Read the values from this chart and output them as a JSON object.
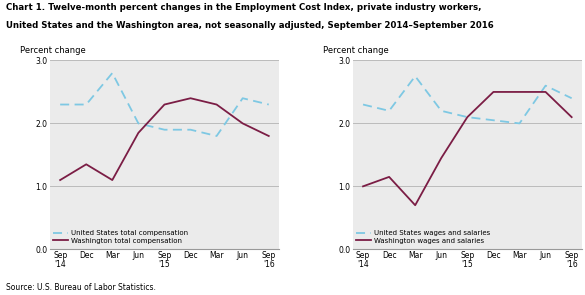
{
  "title_line1": "Chart 1. Twelve-month percent changes in the Employment Cost Index, private industry workers,",
  "title_line2": "United States and the Washington area, not seasonally adjusted, September 2014–September 2016",
  "source": "Source: U.S. Bureau of Labor Statistics.",
  "ylabel": "Percent change",
  "x_labels": [
    "Sep\n'14",
    "Dec",
    "Mar",
    "Jun",
    "Sep\n'15",
    "Dec",
    "Mar",
    "Jun",
    "Sep\n'16"
  ],
  "ylim": [
    0.0,
    3.0
  ],
  "yticks": [
    0.0,
    1.0,
    2.0,
    3.0
  ],
  "left": {
    "us_label": "United States total compensation",
    "wa_label": "Washington total compensation",
    "us_values": [
      2.3,
      2.3,
      2.8,
      2.0,
      1.9,
      1.9,
      1.8,
      2.4,
      2.3
    ],
    "wa_values": [
      1.1,
      1.35,
      1.1,
      1.85,
      2.3,
      2.4,
      2.3,
      2.0,
      1.8
    ]
  },
  "right": {
    "us_label": "United States wages and salaries",
    "wa_label": "Washington wages and salaries",
    "us_values": [
      2.3,
      2.2,
      2.75,
      2.2,
      2.1,
      2.05,
      2.0,
      2.6,
      2.4
    ],
    "wa_values": [
      1.0,
      1.15,
      0.7,
      1.45,
      2.1,
      2.5,
      2.5,
      2.5,
      2.1
    ]
  },
  "us_color": "#7ec8e3",
  "wa_color": "#7b1d45",
  "linewidth": 1.3,
  "grid_color": "#bbbbbb",
  "bg_color": "#ebebeb"
}
